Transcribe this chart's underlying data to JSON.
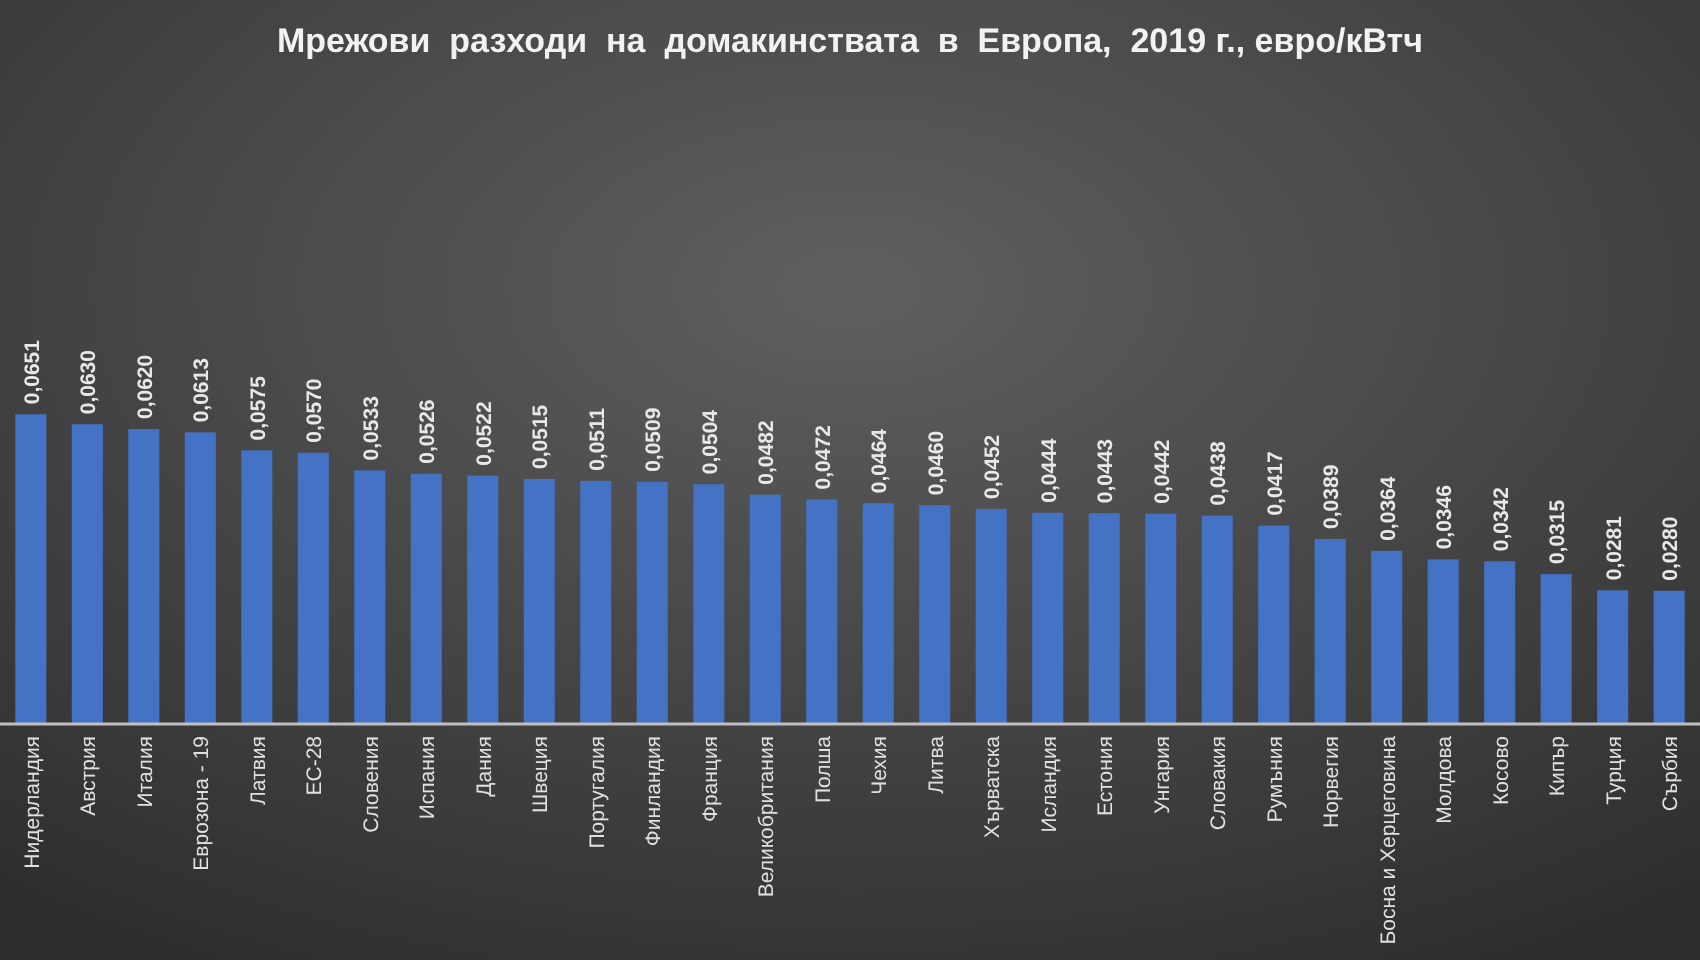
{
  "chart_data": {
    "type": "bar",
    "title": "Мрежови  разходи  на  домакинствата  в  Европа,  2019 г., евро/кВтч",
    "categories": [
      "Нидерландия",
      "Австрия",
      "Италия",
      "Еврозона - 19",
      "Латвия",
      "ЕС-28",
      "Словения",
      "Испания",
      "Дания",
      "Швеция",
      "Португалия",
      "Финландия",
      "Франция",
      "Великобритания",
      "Полша",
      "Чехия",
      "Литва",
      "Хърватска",
      "Исландия",
      "Естония",
      "Унгария",
      "Словакия",
      "Румъния",
      "Норвегия",
      "Босна и Херцеговина",
      "Молдова",
      "Косово",
      "Кипър",
      "Турция",
      "Сърбия"
    ],
    "values": [
      0.0651,
      0.063,
      0.062,
      0.0613,
      0.0575,
      0.057,
      0.0533,
      0.0526,
      0.0522,
      0.0515,
      0.0511,
      0.0509,
      0.0504,
      0.0482,
      0.0472,
      0.0464,
      0.046,
      0.0452,
      0.0444,
      0.0443,
      0.0442,
      0.0438,
      0.0417,
      0.0389,
      0.0364,
      0.0346,
      0.0342,
      0.0315,
      0.0281,
      0.028
    ],
    "value_labels": [
      "0,0651",
      "0,0630",
      "0,0620",
      "0,0613",
      "0,0575",
      "0,0570",
      "0,0533",
      "0,0526",
      "0,0522",
      "0,0515",
      "0,0511",
      "0,0509",
      "0,0504",
      "0,0482",
      "0,0472",
      "0,0464",
      "0,0460",
      "0,0452",
      "0,0444",
      "0,0443",
      "0,0442",
      "0,0438",
      "0,0417",
      "0,0389",
      "0,0364",
      "0,0346",
      "0,0342",
      "0,0315",
      "0,0281",
      "0,0280"
    ],
    "color": "#4472c4"
  }
}
